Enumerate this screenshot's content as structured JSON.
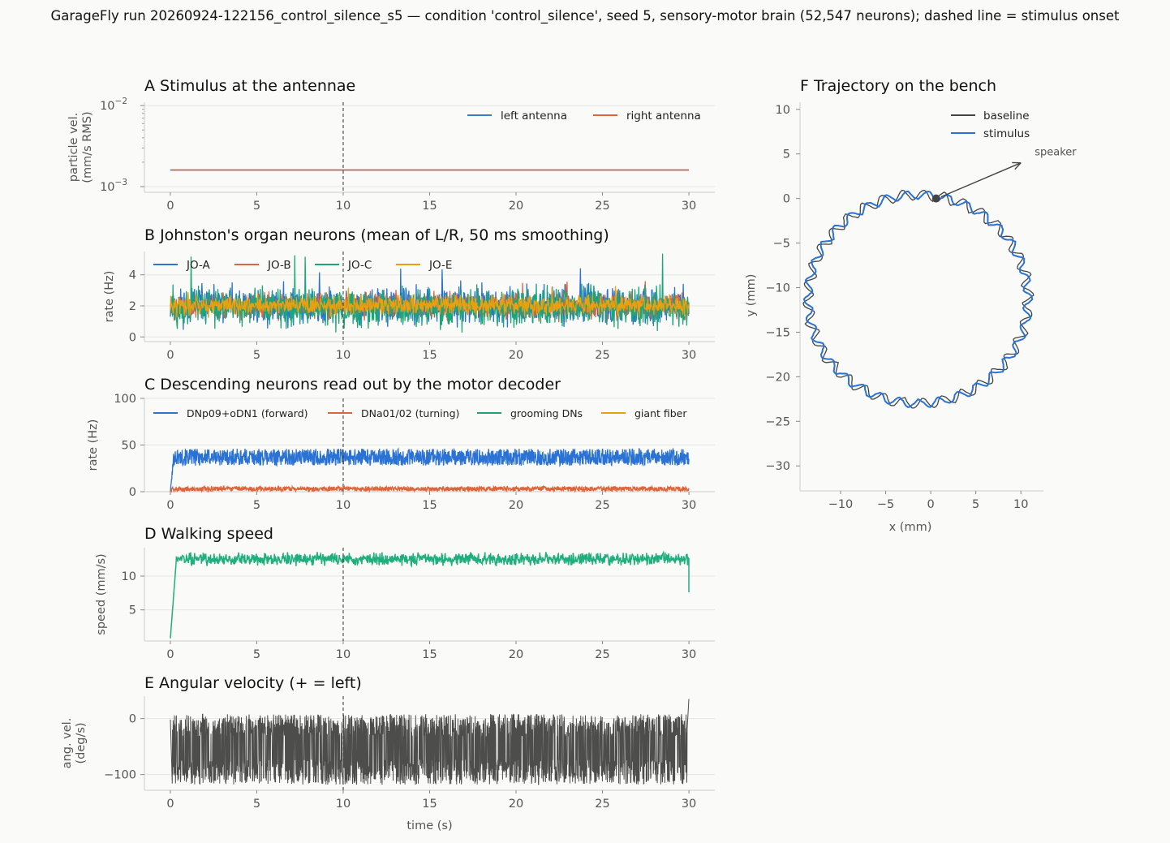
{
  "figure": {
    "title": "GarageFly run 20260924-122156_control_silence_s5 — condition 'control_silence', seed 5, sensory-motor brain (52,547 neurons); dashed line = stimulus onset"
  },
  "colors": {
    "background": "#fafaf8",
    "grid": "#e6e6e6",
    "spine": "#cccccc",
    "onset": "#444444",
    "left_antenna": "#2f80c8",
    "right_antenna": "#e0643a",
    "jo_a": "#2a72d4",
    "jo_b": "#e0643a",
    "jo_c": "#1ca57a",
    "jo_e": "#e8a010",
    "forward": "#2a72d4",
    "turning": "#e0643a",
    "grooming": "#1ca57a",
    "giant": "#e8a010",
    "speed": "#1fae7e",
    "angvel": "#4d4d4b",
    "baseline": "#444444",
    "stimulus": "#2a72d4"
  },
  "chart_data": [
    {
      "id": "A",
      "type": "line",
      "title": "A  Stimulus at the antennae",
      "ylabel": [
        "particle vel.",
        "(mm/s RMS)"
      ],
      "yscale": "log",
      "ylim": [
        0.00085,
        0.011
      ],
      "xlim": [
        -1.5,
        31.5
      ],
      "x_ticks": [
        "0",
        "5",
        "10",
        "15",
        "20",
        "25",
        "30"
      ],
      "y_ticks": [
        {
          "value": 0.001,
          "label": "10",
          "exp": "−3"
        },
        {
          "value": 0.01,
          "label": "10",
          "exp": "−2"
        }
      ],
      "stimulus_onset": 10,
      "legend_position": "top-right",
      "series": [
        {
          "name": "left antenna",
          "color_key": "left_antenna",
          "x": [
            0,
            30
          ],
          "y": [
            0.0016,
            0.0016
          ]
        },
        {
          "name": "right antenna",
          "color_key": "right_antenna",
          "x": [
            0,
            30
          ],
          "y": [
            0.0016,
            0.0016
          ]
        }
      ]
    },
    {
      "id": "B",
      "type": "line",
      "title": "B  Johnston's organ neurons (mean of L/R, 50 ms smoothing)",
      "ylabel": [
        "rate (Hz)"
      ],
      "ylim": [
        -0.3,
        5.5
      ],
      "xlim": [
        -1.5,
        31.5
      ],
      "x_ticks": [
        "0",
        "5",
        "10",
        "15",
        "20",
        "25",
        "30"
      ],
      "y_ticks": [
        {
          "value": 0,
          "label": "0"
        },
        {
          "value": 2,
          "label": "2"
        },
        {
          "value": 4,
          "label": "4"
        }
      ],
      "stimulus_onset": 10,
      "legend_position": "top-left",
      "series": [
        {
          "name": "JO-A",
          "color_key": "jo_a",
          "mean": 2.0,
          "noise": 0.85,
          "spike_max": 4.4
        },
        {
          "name": "JO-B",
          "color_key": "jo_b",
          "mean": 2.0,
          "noise": 0.6,
          "spike_max": 3.6
        },
        {
          "name": "JO-C",
          "color_key": "jo_c",
          "mean": 1.9,
          "noise": 0.9,
          "spike_max": 5.4
        },
        {
          "name": "JO-E",
          "color_key": "jo_e",
          "mean": 2.05,
          "noise": 0.45,
          "spike_max": 3.3
        }
      ]
    },
    {
      "id": "C",
      "type": "line",
      "title": "C  Descending neurons read out by the motor decoder",
      "ylabel": [
        "rate (Hz)"
      ],
      "ylim": [
        0,
        100
      ],
      "xlim": [
        -1.5,
        31.5
      ],
      "x_ticks": [
        "0",
        "5",
        "10",
        "15",
        "20",
        "25",
        "30"
      ],
      "y_ticks": [
        {
          "value": 0,
          "label": "0"
        },
        {
          "value": 50,
          "label": "50"
        },
        {
          "value": 100,
          "label": "100"
        }
      ],
      "stimulus_onset": 10,
      "legend_position": "top",
      "series": [
        {
          "name": "DNp09+oDN1 (forward)",
          "color_key": "forward",
          "mean": 37,
          "range": [
            28,
            46
          ],
          "rise_s": 0.2
        },
        {
          "name": "DNa01/02 (turning)",
          "color_key": "turning",
          "mean": 3,
          "range": [
            0.5,
            5.5
          ],
          "rise_s": 0.1
        },
        {
          "name": "grooming DNs",
          "color_key": "grooming",
          "mean": 0,
          "range": [
            0,
            0
          ],
          "rise_s": 0
        },
        {
          "name": "giant fiber",
          "color_key": "giant",
          "mean": 0,
          "range": [
            0,
            0
          ],
          "rise_s": 0
        }
      ]
    },
    {
      "id": "D",
      "type": "line",
      "title": "D  Walking speed",
      "ylabel": [
        "speed (mm/s)"
      ],
      "ylim": [
        0.4,
        14.2
      ],
      "xlim": [
        -1.5,
        31.5
      ],
      "x_ticks": [
        "0",
        "5",
        "10",
        "15",
        "20",
        "25",
        "30"
      ],
      "y_ticks": [
        {
          "value": 5,
          "label": "5"
        },
        {
          "value": 10,
          "label": "10"
        }
      ],
      "stimulus_onset": 10,
      "series": [
        {
          "name": "",
          "color_key": "speed",
          "start": 0.8,
          "mean": 12.5,
          "range": [
            11.2,
            13.8
          ],
          "end": 7.6,
          "rise_s": 0.35
        }
      ]
    },
    {
      "id": "E",
      "type": "line",
      "title": "E  Angular velocity (+ = left)",
      "ylabel": [
        "ang. vel.",
        "(deg/s)"
      ],
      "xlabel": "time (s)",
      "ylim": [
        -128,
        40
      ],
      "xlim": [
        -1.5,
        31.5
      ],
      "x_ticks": [
        "0",
        "5",
        "10",
        "15",
        "20",
        "25",
        "30"
      ],
      "y_ticks": [
        {
          "value": 0,
          "label": "0"
        },
        {
          "value": -100,
          "label": "−100"
        }
      ],
      "stimulus_onset": 10,
      "series": [
        {
          "name": "",
          "color_key": "angvel",
          "mean": -45,
          "range": [
            -118,
            8
          ],
          "end_spike": 35
        }
      ]
    },
    {
      "id": "F",
      "type": "line",
      "title": "F  Trajectory on the bench",
      "xlabel": "x (mm)",
      "ylabel": [
        "y (mm)"
      ],
      "xlim": [
        -14.5,
        12.5
      ],
      "ylim": [
        -32.8,
        10.8
      ],
      "x_ticks": [
        {
          "value": -10,
          "label": "−10"
        },
        {
          "value": -5,
          "label": "−5"
        },
        {
          "value": 0,
          "label": "0"
        },
        {
          "value": 5,
          "label": "5"
        },
        {
          "value": 10,
          "label": "10"
        }
      ],
      "y_ticks": [
        {
          "value": 10,
          "label": "10"
        },
        {
          "value": 5,
          "label": "5"
        },
        {
          "value": 0,
          "label": "0"
        },
        {
          "value": -5,
          "label": "−5"
        },
        {
          "value": -10,
          "label": "−10"
        },
        {
          "value": -15,
          "label": "−15"
        },
        {
          "value": -20,
          "label": "−20"
        },
        {
          "value": -25,
          "label": "−25"
        },
        {
          "value": -30,
          "label": "−30"
        }
      ],
      "legend_position": "top-right",
      "trajectory": {
        "center": [
          -1.4,
          -11.3
        ],
        "radius_x": 12.2,
        "radius_y": 11.7,
        "wobble": 0.45,
        "start": [
          0.6,
          0.0
        ]
      },
      "series": [
        {
          "name": "baseline",
          "color_key": "baseline"
        },
        {
          "name": "stimulus",
          "color_key": "stimulus"
        }
      ],
      "annotation": {
        "text": "speaker",
        "xy": [
          0.6,
          0.0
        ],
        "xytext": [
          10.0,
          4.0
        ]
      }
    }
  ]
}
